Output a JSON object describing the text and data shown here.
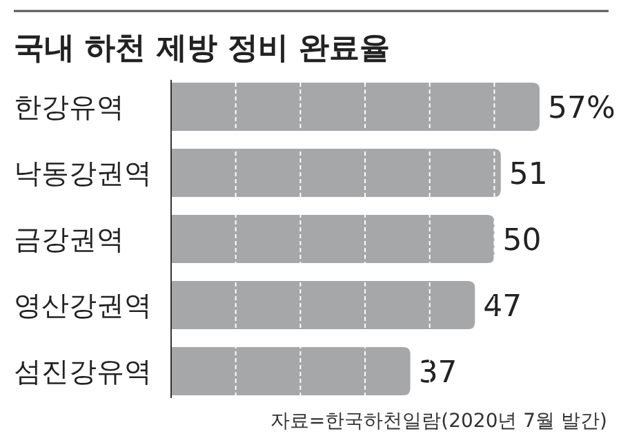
{
  "chart_data": {
    "type": "bar",
    "orientation": "horizontal",
    "title": "국내 하천 제방 정비 완료율",
    "categories": [
      "한강유역",
      "낙동강권역",
      "금강권역",
      "영산강권역",
      "섬진강유역"
    ],
    "values": [
      57,
      51,
      50,
      47,
      37
    ],
    "value_labels": [
      "57%",
      "51",
      "50",
      "47",
      "37"
    ],
    "color": "#a6a7a9",
    "xlim": [
      0,
      57
    ],
    "ref_lines": [
      {
        "axis": "x",
        "value": 10,
        "color": "#ffffff",
        "line_style": "dashed"
      },
      {
        "axis": "x",
        "value": 20,
        "color": "#ffffff",
        "line_style": "dashed"
      },
      {
        "axis": "x",
        "value": 30,
        "color": "#ffffff",
        "line_style": "dashed"
      },
      {
        "axis": "x",
        "value": 40,
        "color": "#ffffff",
        "line_style": "dashed"
      },
      {
        "axis": "x",
        "value": 50,
        "color": "#ffffff",
        "line_style": "dashed"
      }
    ],
    "annotations": [
      "자료=한국하천일람(2020년 7월 발간)"
    ]
  }
}
